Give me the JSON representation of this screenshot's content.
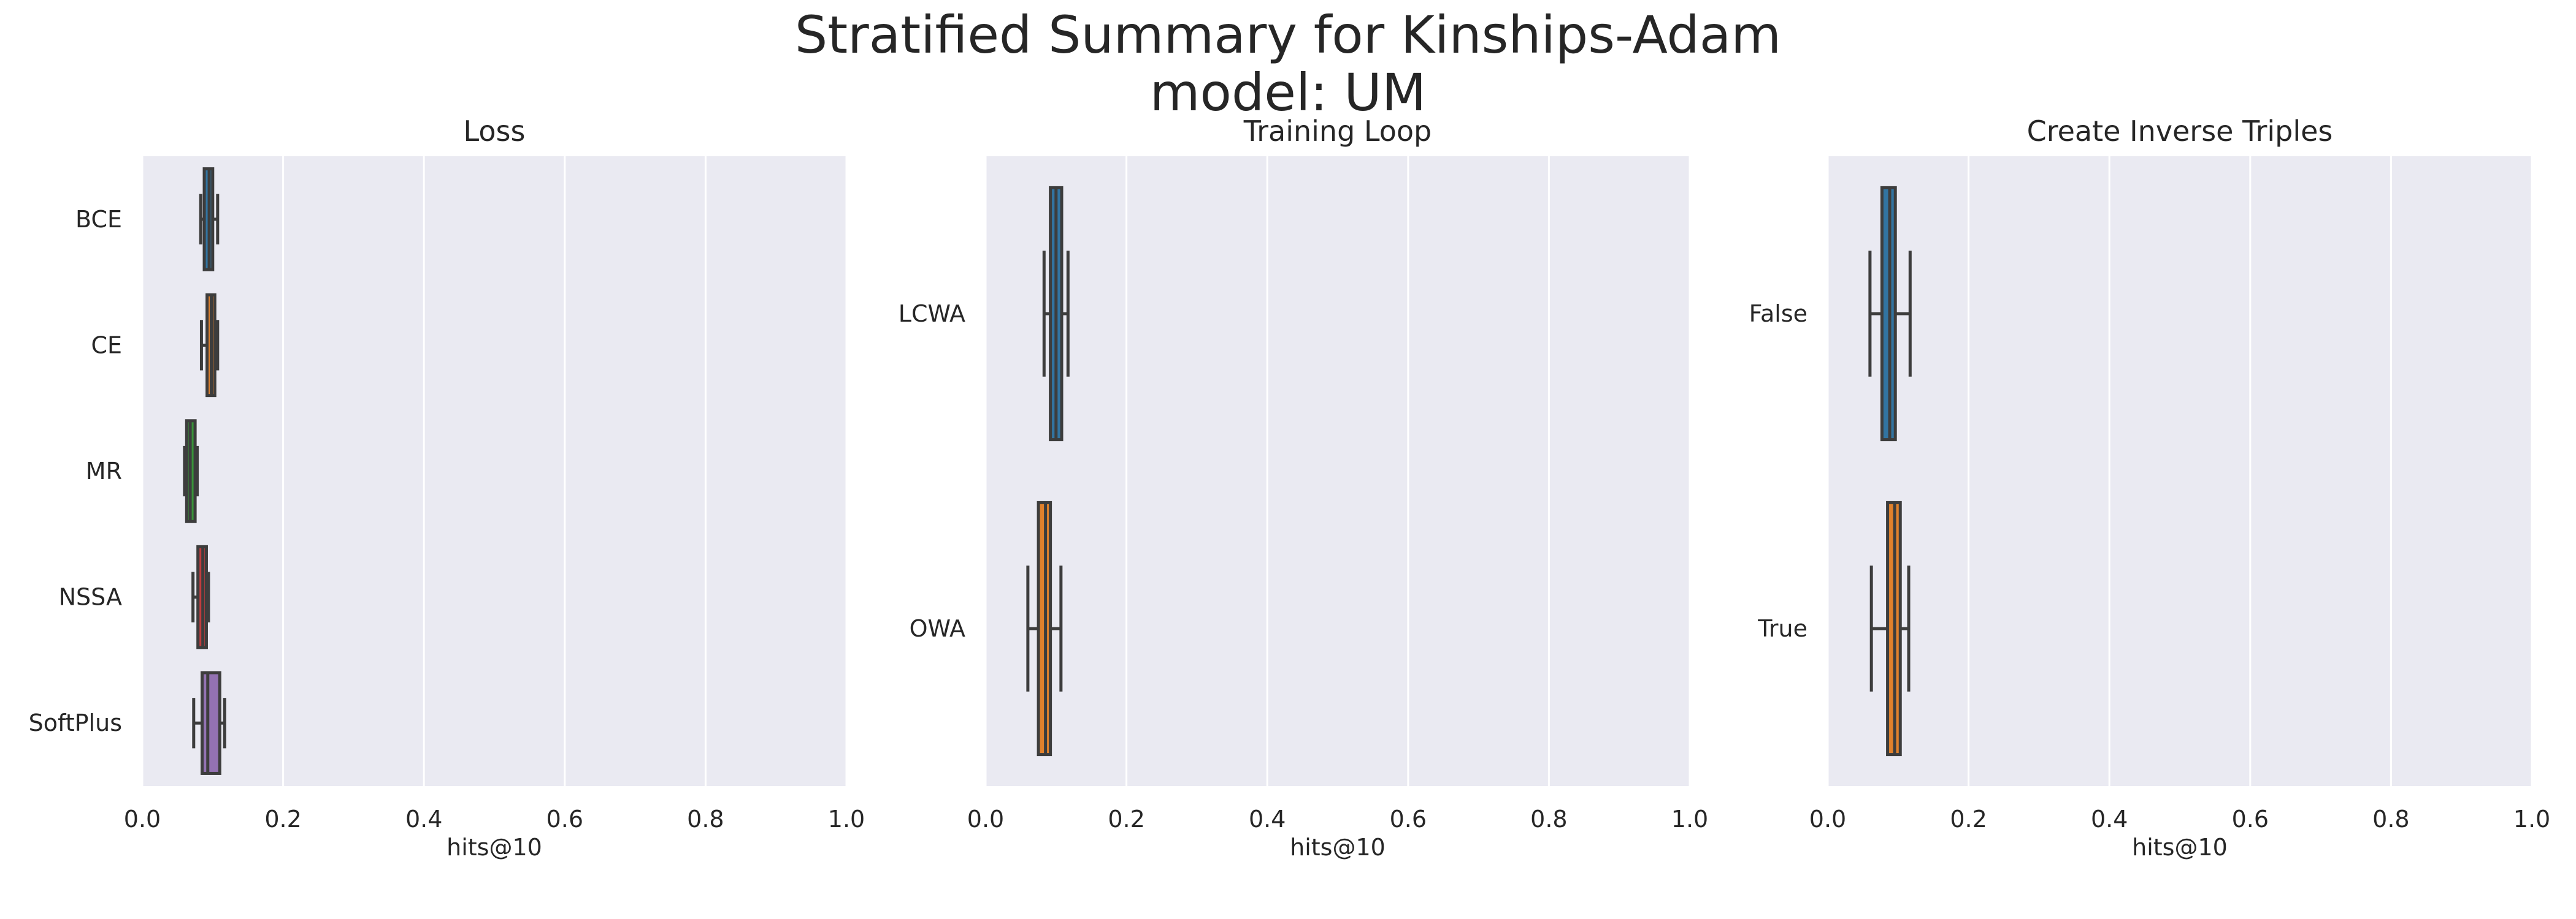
{
  "figure": {
    "title_line1": "Stratified Summary for Kinships-Adam",
    "title_line2": "model: UM"
  },
  "colors": {
    "panel_bg": "#eaeaf2",
    "grid": "#ffffff",
    "whisker": "#3d3d3d",
    "palette": [
      "#3274a1",
      "#e1812c",
      "#3a923a",
      "#c03d3e",
      "#9372b2"
    ]
  },
  "chart_data": [
    {
      "type": "box",
      "orientation": "horizontal",
      "title": "Loss",
      "xlabel": "hits@10",
      "ylabel": "",
      "xlim": [
        0,
        1
      ],
      "xticks": [
        "0.0",
        "0.2",
        "0.4",
        "0.6",
        "0.8",
        "1.0"
      ],
      "grid": true,
      "categories": [
        "BCE",
        "CE",
        "MR",
        "NSSA",
        "SoftPlus"
      ],
      "boxes": [
        {
          "label": "BCE",
          "min": 0.083,
          "q1": 0.088,
          "median": 0.095,
          "q3": 0.1,
          "max": 0.107
        },
        {
          "label": "CE",
          "min": 0.084,
          "q1": 0.092,
          "median": 0.098,
          "q3": 0.103,
          "max": 0.107
        },
        {
          "label": "MR",
          "min": 0.06,
          "q1": 0.063,
          "median": 0.068,
          "q3": 0.075,
          "max": 0.078
        },
        {
          "label": "NSSA",
          "min": 0.072,
          "q1": 0.079,
          "median": 0.086,
          "q3": 0.091,
          "max": 0.094
        },
        {
          "label": "SoftPlus",
          "min": 0.073,
          "q1": 0.085,
          "median": 0.093,
          "q3": 0.11,
          "max": 0.117
        }
      ]
    },
    {
      "type": "box",
      "orientation": "horizontal",
      "title": "Training Loop",
      "xlabel": "hits@10",
      "ylabel": "",
      "xlim": [
        0,
        1
      ],
      "xticks": [
        "0.0",
        "0.2",
        "0.4",
        "0.6",
        "0.8",
        "1.0"
      ],
      "grid": true,
      "categories": [
        "LCWA",
        "OWA"
      ],
      "boxes": [
        {
          "label": "LCWA",
          "min": 0.083,
          "q1": 0.092,
          "median": 0.1,
          "q3": 0.108,
          "max": 0.117
        },
        {
          "label": "OWA",
          "min": 0.06,
          "q1": 0.075,
          "median": 0.085,
          "q3": 0.092,
          "max": 0.107
        }
      ]
    },
    {
      "type": "box",
      "orientation": "horizontal",
      "title": "Create Inverse Triples",
      "xlabel": "hits@10",
      "ylabel": "",
      "xlim": [
        0,
        1
      ],
      "xticks": [
        "0.0",
        "0.2",
        "0.4",
        "0.6",
        "0.8",
        "1.0"
      ],
      "grid": true,
      "categories": [
        "False",
        "True"
      ],
      "boxes": [
        {
          "label": "False",
          "min": 0.06,
          "q1": 0.077,
          "median": 0.088,
          "q3": 0.096,
          "max": 0.117
        },
        {
          "label": "True",
          "min": 0.062,
          "q1": 0.085,
          "median": 0.095,
          "q3": 0.103,
          "max": 0.115
        }
      ]
    }
  ]
}
